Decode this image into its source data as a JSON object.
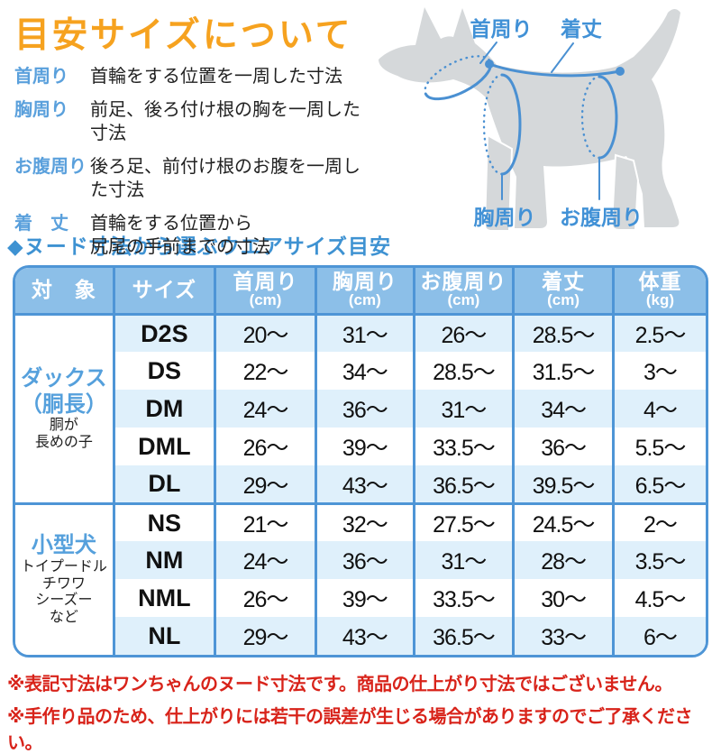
{
  "title": "目安サイズについて",
  "legend": [
    {
      "term": "首周り",
      "desc": [
        "首輪をする位置を一周した寸法"
      ]
    },
    {
      "term": "胸周り",
      "desc": [
        "前足、後ろ付け根の胸を一周した寸法"
      ]
    },
    {
      "term": "お腹周り",
      "desc": [
        "後ろ足、前付け根のお腹を一周した寸法"
      ]
    },
    {
      "term": "着　丈",
      "desc": [
        "首輪をする位置から",
        "尻尾の手前までの寸法"
      ]
    }
  ],
  "diagram": {
    "labels": {
      "neck": "首周り",
      "back_length": "着丈",
      "chest": "胸周り",
      "belly": "お腹周り"
    },
    "colors": {
      "dog_silhouette": "#D5D8DA",
      "annotation_blue": "#4A90D2",
      "label_blue": "#4191D6"
    }
  },
  "section_title": "◆ヌード寸法から選ぶウエアサイズ目安",
  "table": {
    "columns": [
      {
        "label": "対　象",
        "unit": ""
      },
      {
        "label": "サイズ",
        "unit": ""
      },
      {
        "label": "首周り",
        "unit": "(cm)"
      },
      {
        "label": "胸周り",
        "unit": "(cm)"
      },
      {
        "label": "お腹周り",
        "unit": "(cm)"
      },
      {
        "label": "着丈",
        "unit": "(cm)"
      },
      {
        "label": "体重",
        "unit": "(kg)"
      }
    ],
    "groups": [
      {
        "name": [
          "ダックス",
          "（胴長）"
        ],
        "sub": [
          "胴が",
          "長めの子"
        ],
        "rows": [
          {
            "size": "D2S",
            "neck": "20～",
            "chest": "31～",
            "belly": "26～",
            "length": "28.5～",
            "weight": "2.5～"
          },
          {
            "size": "DS",
            "neck": "22～",
            "chest": "34～",
            "belly": "28.5～",
            "length": "31.5～",
            "weight": "3～"
          },
          {
            "size": "DM",
            "neck": "24～",
            "chest": "36～",
            "belly": "31～",
            "length": "34～",
            "weight": "4～"
          },
          {
            "size": "DML",
            "neck": "26～",
            "chest": "39～",
            "belly": "33.5～",
            "length": "36～",
            "weight": "5.5～"
          },
          {
            "size": "DL",
            "neck": "29～",
            "chest": "43～",
            "belly": "36.5～",
            "length": "39.5～",
            "weight": "6.5～"
          }
        ]
      },
      {
        "name": [
          "小型犬"
        ],
        "sub": [
          "トイプードル",
          "チワワ",
          "シーズー",
          "など"
        ],
        "rows": [
          {
            "size": "NS",
            "neck": "21～",
            "chest": "32～",
            "belly": "27.5～",
            "length": "24.5～",
            "weight": "2～"
          },
          {
            "size": "NM",
            "neck": "24～",
            "chest": "36～",
            "belly": "31～",
            "length": "28～",
            "weight": "3.5～"
          },
          {
            "size": "NML",
            "neck": "26～",
            "chest": "39～",
            "belly": "33.5～",
            "length": "30～",
            "weight": "4.5～"
          },
          {
            "size": "NL",
            "neck": "29～",
            "chest": "43～",
            "belly": "36.5～",
            "length": "33～",
            "weight": "6～"
          }
        ]
      }
    ]
  },
  "notes": [
    "※表記寸法はワンちゃんのヌード寸法です。商品の仕上がり寸法ではございません。",
    "※手作り品のため、仕上がりには若干の誤差が生じる場合がありますのでご了承ください。"
  ],
  "colors": {
    "title_orange": "#F6A21F",
    "legend_term_blue": "#5AA0DC",
    "section_title_blue": "#3E92D2",
    "table_border_blue": "#4E95D6",
    "header_bg_blue": "#8CBFE8",
    "row_alt_blue": "#DFF0FB",
    "group_name_blue": "#55A0DC",
    "note_red": "#D8231A"
  }
}
